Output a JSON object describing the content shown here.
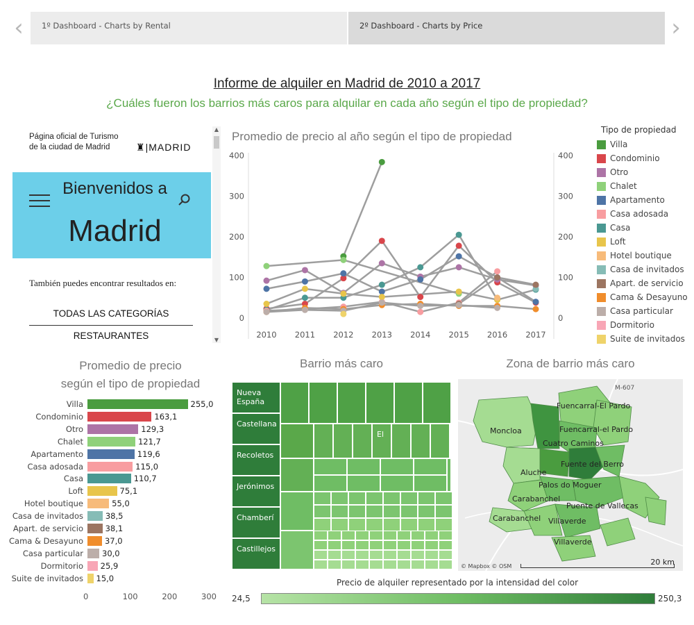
{
  "nav": {
    "tab1": "1º Dashboard  -  Charts by Rental",
    "tab2": "2º Dashboard  -  Charts by Price"
  },
  "header": {
    "title": "Informe de alquiler en Madrid de 2010 a 2017",
    "subtitle": "¿Cuáles fueron los barrios más caros para alquilar en cada año según el tipo de propiedad?"
  },
  "web": {
    "tourism": "Página oficial de Turismo de la ciudad de Madrid",
    "logo": "MADRID",
    "welcome_line1": "Bienvenidos a",
    "welcome_line2": "Madrid",
    "also": "También puedes encontrar resultados en:",
    "cat1": "TODAS LAS CATEGORÍAS",
    "cat2": "RESTAURANTES"
  },
  "colors": {
    "Villa": "#4a9c3f",
    "Condominio": "#d9464b",
    "Otro": "#ad74a6",
    "Chalet": "#8fd17a",
    "Apartamento": "#4e74a6",
    "Casa adosada": "#f89da0",
    "Casa": "#4a9892",
    "Loft": "#e8c54b",
    "Hotel boutique": "#f7bb7a",
    "Casa de invitados": "#86bcb6",
    "Apart. de servicio": "#9c7561",
    "Cama & Desayuno": "#f08d2c",
    "Casa particular": "#bcaea9",
    "Dormitorio": "#f8a6b6",
    "Suite de invitados": "#efd36a"
  },
  "line_chart": {
    "chart_data": {
      "type": "line",
      "title": "Promedio de precio al año según el tipo de propiedad",
      "x": [
        "2010",
        "2011",
        "2012",
        "2013",
        "2014",
        "2015",
        "2016",
        "2017"
      ],
      "ylim": [
        0,
        400
      ],
      "yticks": [
        0,
        100,
        200,
        300,
        400
      ],
      "series": [
        {
          "name": "Villa",
          "values": [
            null,
            null,
            152,
            384,
            null,
            null,
            null,
            null
          ]
        },
        {
          "name": "Chalet",
          "values": [
            128,
            null,
            143,
            null,
            null,
            60,
            null,
            null
          ]
        },
        {
          "name": "Condominio",
          "values": [
            23,
            35,
            98,
            190,
            52,
            178,
            88,
            38
          ]
        },
        {
          "name": "Otro",
          "values": [
            92,
            118,
            62,
            135,
            102,
            125,
            95,
            80
          ]
        },
        {
          "name": "Apartamento",
          "values": [
            72,
            90,
            110,
            65,
            95,
            152,
            100,
            40
          ]
        },
        {
          "name": "Casa",
          "values": [
            20,
            50,
            50,
            82,
            125,
            205,
            45,
            70
          ]
        },
        {
          "name": "Casa adosada",
          "values": [
            18,
            22,
            28,
            40,
            15,
            38,
            115,
            null
          ]
        },
        {
          "name": "Loft",
          "values": [
            35,
            72,
            60,
            52,
            null,
            65,
            45,
            null
          ]
        },
        {
          "name": "Hotel boutique",
          "values": [
            null,
            null,
            null,
            null,
            null,
            null,
            50,
            null
          ]
        },
        {
          "name": "Casa de invitados",
          "values": [
            null,
            null,
            null,
            null,
            null,
            null,
            null,
            72
          ]
        },
        {
          "name": "Apart. de servicio",
          "values": [
            null,
            null,
            null,
            null,
            null,
            35,
            100,
            82
          ]
        },
        {
          "name": "Cama & Desayuno",
          "values": [
            15,
            25,
            22,
            32,
            35,
            30,
            30,
            22
          ]
        },
        {
          "name": "Casa particular",
          "values": [
            15,
            20,
            18,
            38,
            30,
            32,
            25,
            null
          ]
        },
        {
          "name": "Suite de invitados",
          "values": [
            null,
            null,
            10,
            null,
            null,
            null,
            null,
            null
          ]
        }
      ]
    },
    "legend_title": "Tipo de propiedad",
    "legend": [
      "Villa",
      "Condominio",
      "Otro",
      "Chalet",
      "Apartamento",
      "Casa adosada",
      "Casa",
      "Loft",
      "Hotel boutique",
      "Casa de invitados",
      "Apart. de servicio",
      "Cama & Desayuno",
      "Casa particular",
      "Dormitorio",
      "Suite de invitados"
    ]
  },
  "bar_chart": {
    "title_line1": "Promedio de precio",
    "title_line2": "según el tipo de propiedad",
    "chart_data": {
      "type": "bar",
      "title": "Promedio de precio según el tipo de propiedad",
      "categories": [
        "Villa",
        "Condominio",
        "Otro",
        "Chalet",
        "Apartamento",
        "Casa adosada",
        "Casa",
        "Loft",
        "Hotel boutique",
        "Casa de invitados",
        "Apart. de servicio",
        "Cama & Desayuno",
        "Casa particular",
        "Dormitorio",
        "Suite de invitados"
      ],
      "values": [
        255.0,
        163.1,
        129.3,
        121.7,
        119.6,
        115.0,
        110.7,
        75.1,
        55.0,
        38.5,
        38.1,
        37.0,
        30.0,
        25.9,
        15.0
      ],
      "labels": [
        "255,0",
        "163,1",
        "129,3",
        "121,7",
        "119,6",
        "115,0",
        "110,7",
        "75,1",
        "55,0",
        "38,5",
        "38,1",
        "37,0",
        "30,0",
        "25,9",
        "15,0"
      ],
      "xlim": [
        0,
        300
      ],
      "xticks": [
        0,
        100,
        200,
        300
      ]
    }
  },
  "treemap": {
    "title": "Barrio más caro",
    "labels": [
      "Nueva España",
      "Castellana",
      "Recoletos",
      "Jerónimos",
      "Chamberí",
      "Castillejos",
      "El"
    ]
  },
  "map": {
    "title": "Zona de barrio más caro",
    "labels": [
      "Fuencarral-El Pardo",
      "Moncloa",
      "Fuencarral-el Pardo",
      "Cuatro Caminos",
      "Fuente del Berro",
      "Aluche",
      "Palos do Moguer",
      "Carabanchel",
      "Puente de Vallecas",
      "Carabanchel",
      "Villaverde",
      "Villaverde",
      "M-607"
    ],
    "attribution": "© Mapbox © OSM",
    "scale": "20 km"
  },
  "gradient": {
    "title": "Precio de alquiler representado por la intensidad del color",
    "min": "24,5",
    "max": "250,3"
  }
}
